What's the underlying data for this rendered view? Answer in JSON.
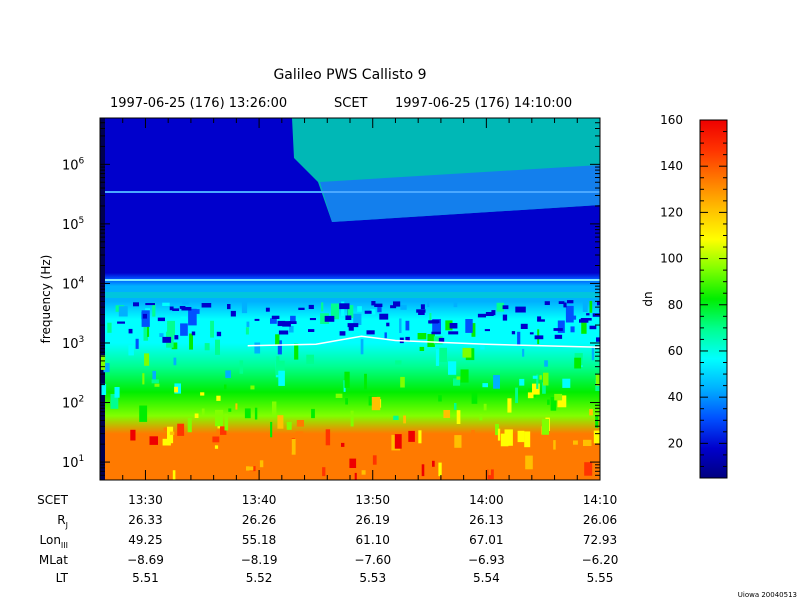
{
  "chart_data": {
    "type": "heatmap",
    "title": "Galileo PWS Callisto 9",
    "top_labels": {
      "start": "1997-06-25 (176) 13:26:00",
      "middle": "SCET",
      "end": "1997-06-25 (176) 14:10:00"
    },
    "ylabel": "frequency (Hz)",
    "yscale": "log",
    "ylim": [
      5,
      6000000
    ],
    "xlim": [
      "13:26",
      "14:10"
    ],
    "y_tick_labels": [
      {
        "mantissa": "10",
        "exp": "1",
        "value": 10
      },
      {
        "mantissa": "10",
        "exp": "2",
        "value": 100
      },
      {
        "mantissa": "10",
        "exp": "3",
        "value": 1000
      },
      {
        "mantissa": "10",
        "exp": "4",
        "value": 10000
      },
      {
        "mantissa": "10",
        "exp": "5",
        "value": 100000
      },
      {
        "mantissa": "10",
        "exp": "6",
        "value": 1000000
      }
    ],
    "colorbar": {
      "label": "dn",
      "range": [
        5,
        160
      ],
      "ticks": [
        "20",
        "40",
        "60",
        "80",
        "100",
        "120",
        "140",
        "160"
      ],
      "colors": [
        "#000080",
        "#0000cc",
        "#0050ff",
        "#00b0ff",
        "#00ffff",
        "#00ff90",
        "#00ee00",
        "#80ff00",
        "#ffff00",
        "#ffc000",
        "#ff7a00",
        "#ff3300",
        "#ee0000"
      ]
    },
    "intensity_profile": {
      "freq": [
        5,
        30,
        60,
        150,
        400,
        1000,
        2500,
        5000,
        9000,
        12000,
        15000,
        100000,
        6000000
      ],
      "dn": [
        135,
        135,
        100,
        80,
        68,
        55,
        52,
        50,
        40,
        28,
        20,
        15,
        12
      ]
    },
    "white_line": {
      "time": [
        "13:39",
        "13:45",
        "13:49",
        "13:52",
        "14:00",
        "14:10"
      ],
      "freq": [
        900,
        950,
        1300,
        1100,
        950,
        850
      ]
    }
  },
  "ephemeris": {
    "row_labels": {
      "scet": "SCET",
      "rj": "R",
      "rj_sub": "J",
      "lon": "Lon",
      "lon_sub": "III",
      "mlat": "MLat",
      "lt": "LT"
    },
    "columns": [
      {
        "scet": "13:30",
        "rj": "26.33",
        "lon": "49.25",
        "mlat": "−8.69",
        "lt": "5.51"
      },
      {
        "scet": "13:40",
        "rj": "26.26",
        "lon": "55.18",
        "mlat": "−8.19",
        "lt": "5.52"
      },
      {
        "scet": "13:50",
        "rj": "26.19",
        "lon": "61.10",
        "mlat": "−7.60",
        "lt": "5.53"
      },
      {
        "scet": "14:00",
        "rj": "26.13",
        "lon": "67.01",
        "mlat": "−6.93",
        "lt": "5.54"
      },
      {
        "scet": "14:10",
        "rj": "26.06",
        "lon": "72.93",
        "mlat": "−6.20",
        "lt": "5.55"
      }
    ]
  },
  "footer": "Uiowa 20040513"
}
